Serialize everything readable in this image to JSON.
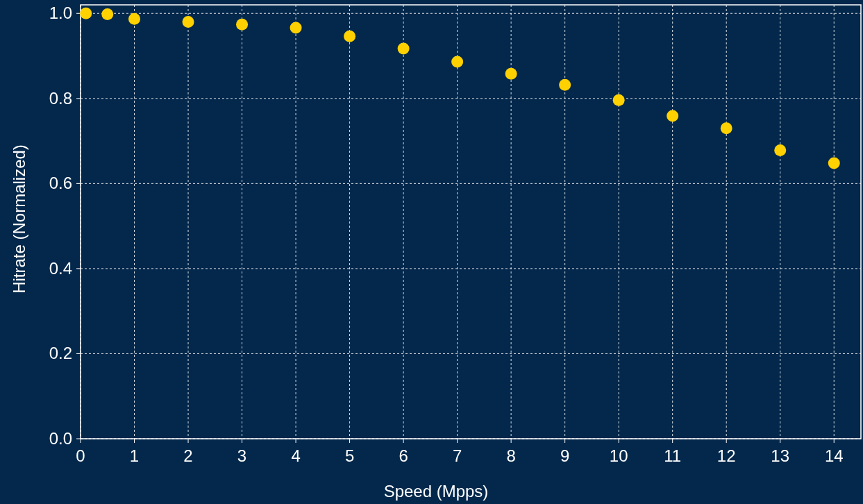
{
  "chart_data": {
    "type": "scatter",
    "xlabel": "Speed (Mpps)",
    "ylabel": "Hitrate (Normalized)",
    "x": [
      0.1,
      0.5,
      1,
      2,
      3,
      4,
      5,
      6,
      7,
      8,
      9,
      10,
      11,
      12,
      13,
      14
    ],
    "values": [
      1.0,
      0.998,
      0.987,
      0.98,
      0.974,
      0.966,
      0.946,
      0.917,
      0.886,
      0.858,
      0.832,
      0.796,
      0.759,
      0.73,
      0.678,
      0.648
    ],
    "color": "#ffd100",
    "marker": "circle",
    "grid": true,
    "xlim": [
      0,
      14.5
    ],
    "xticks": [
      0,
      1,
      2,
      3,
      4,
      5,
      6,
      7,
      8,
      9,
      10,
      11,
      12,
      13,
      14
    ],
    "ylim": [
      0,
      1.02
    ],
    "yticks": [
      {
        "value": 0,
        "label": "0.0"
      },
      {
        "value": 0.2,
        "label": "0.2"
      },
      {
        "value": 0.4,
        "label": "0.4"
      },
      {
        "value": 0.6,
        "label": "0.6"
      },
      {
        "value": 0.8,
        "label": "0.8"
      },
      {
        "value": 1,
        "label": "1.0"
      }
    ]
  }
}
